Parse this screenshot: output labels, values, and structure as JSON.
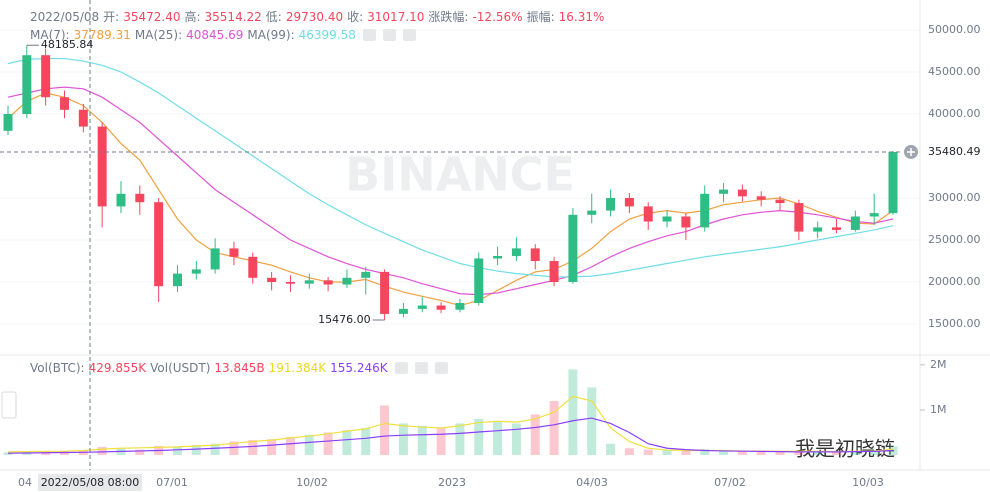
{
  "chart_data": {
    "type": "candlestick",
    "header": [
      {
        "label": "2022/05/08",
        "cls": ""
      },
      {
        "label": "开:",
        "cls": ""
      },
      {
        "label": "35472.40",
        "cls": "red"
      },
      {
        "label": "高:",
        "cls": ""
      },
      {
        "label": "35514.22",
        "cls": "red"
      },
      {
        "label": "低:",
        "cls": ""
      },
      {
        "label": "29730.40",
        "cls": "red"
      },
      {
        "label": "收:",
        "cls": ""
      },
      {
        "label": "31017.10",
        "cls": "red"
      },
      {
        "label": "涨跌幅:",
        "cls": ""
      },
      {
        "label": "-12.56%",
        "cls": "red"
      },
      {
        "label": "振幅:",
        "cls": ""
      },
      {
        "label": "16.31%",
        "cls": "red"
      }
    ],
    "candles": {
      "up_color": "#2ebd85",
      "down_color": "#f6465d",
      "open": [
        38000,
        40000,
        47000,
        42000,
        40500,
        38500,
        29000,
        30500,
        29500,
        19500,
        21000,
        21500,
        24000,
        23000,
        20500,
        20000,
        19800,
        20200,
        19700,
        20500,
        21200,
        16200,
        16800,
        17200,
        16700,
        17500,
        22800,
        23100,
        24000,
        22500,
        20000,
        28000,
        28500,
        30000,
        29000,
        27200,
        27800,
        26500,
        30500,
        31000,
        30200,
        29800,
        29400,
        26000,
        26500,
        26200,
        27800,
        28200
      ],
      "high": [
        41000,
        48185.84,
        47800,
        42800,
        41200,
        39000,
        32000,
        31500,
        30000,
        22000,
        22500,
        25200,
        24800,
        23500,
        21200,
        20800,
        21000,
        20600,
        21500,
        21800,
        21500,
        17500,
        18200,
        17600,
        18000,
        23500,
        24200,
        25300,
        24500,
        23000,
        28800,
        30500,
        31000,
        30600,
        29500,
        28500,
        28200,
        31500,
        31800,
        31600,
        30800,
        30200,
        29800,
        27200,
        27500,
        28500,
        30500,
        35600
      ],
      "low": [
        37500,
        39500,
        41000,
        39500,
        37800,
        26500,
        28200,
        28000,
        17600,
        18800,
        20300,
        21000,
        22000,
        19800,
        19000,
        18800,
        19200,
        18900,
        19300,
        18500,
        15476,
        15800,
        16400,
        16300,
        16400,
        17200,
        22000,
        22500,
        21500,
        19500,
        19800,
        27000,
        27800,
        28200,
        26200,
        26500,
        25000,
        26000,
        29500,
        29600,
        29000,
        28500,
        25000,
        25200,
        25800,
        26000,
        26800,
        28000
      ],
      "close": [
        40000,
        47000,
        42000,
        40500,
        38500,
        29000,
        30500,
        29500,
        19500,
        21000,
        21500,
        24000,
        23000,
        20500,
        20000,
        19800,
        20200,
        19700,
        20500,
        21200,
        16200,
        16800,
        17200,
        16700,
        17500,
        22800,
        23100,
        24000,
        22500,
        20000,
        28000,
        28500,
        30000,
        29000,
        27200,
        27800,
        26500,
        30500,
        31000,
        30200,
        29800,
        29400,
        26000,
        26500,
        26200,
        27800,
        28200,
        35480
      ]
    },
    "series": [
      {
        "name": "MA(7):",
        "value_label": "37789.31",
        "color": "#f0a040",
        "values": [
          39500,
          41500,
          42500,
          42000,
          41000,
          39000,
          36500,
          34500,
          31000,
          27500,
          25000,
          23500,
          23000,
          22500,
          22000,
          21200,
          20500,
          20000,
          20000,
          20300,
          19500,
          18800,
          18300,
          17800,
          17200,
          17800,
          19000,
          20200,
          21200,
          21500,
          22500,
          24000,
          26000,
          27500,
          28200,
          28500,
          28200,
          28500,
          29200,
          29500,
          29800,
          30000,
          29300,
          28400,
          27700,
          27000,
          26900,
          28500
        ]
      },
      {
        "name": "MA(25):",
        "value_label": "40845.69",
        "color": "#e052d8",
        "values": [
          42000,
          42500,
          43000,
          43200,
          43000,
          42000,
          40500,
          39000,
          37000,
          35000,
          33000,
          31000,
          29500,
          28000,
          26500,
          25000,
          24000,
          23000,
          22200,
          21500,
          21000,
          20500,
          19800,
          19200,
          18600,
          18500,
          18700,
          19200,
          19700,
          20200,
          20800,
          21800,
          23000,
          24000,
          24800,
          25500,
          26000,
          26800,
          27500,
          28000,
          28300,
          28500,
          28300,
          28000,
          27600,
          27200,
          27000,
          27500
        ]
      },
      {
        "name": "MA(99):",
        "value_label": "46399.58",
        "color": "#6fdde8",
        "values": [
          46000,
          46500,
          46600,
          46600,
          46300,
          45800,
          45000,
          43800,
          42500,
          41000,
          39500,
          38000,
          36500,
          35000,
          33500,
          32000,
          30500,
          29200,
          28000,
          26800,
          25800,
          24800,
          23800,
          23000,
          22200,
          21700,
          21300,
          21000,
          20800,
          20600,
          20600,
          20700,
          21000,
          21400,
          21800,
          22200,
          22600,
          23000,
          23300,
          23600,
          23900,
          24200,
          24600,
          25000,
          25400,
          25800,
          26200,
          26700
        ]
      }
    ],
    "ylim": [
      11667,
      53571
    ],
    "yticks": [
      {
        "value": 50000,
        "label": "50000.00"
      },
      {
        "value": 45000,
        "label": "45000.00"
      },
      {
        "value": 40000,
        "label": "40000.00"
      },
      {
        "value": 35000,
        "label": "35000.00"
      },
      {
        "value": 30000,
        "label": "30000.00"
      },
      {
        "value": 25000,
        "label": "25000.00"
      },
      {
        "value": 20000,
        "label": "20000.00"
      },
      {
        "value": 15000,
        "label": "15000.00"
      }
    ],
    "grid": true,
    "last_price": {
      "value": 35480.49,
      "label": "35480.49"
    },
    "annotations": [
      {
        "value": 48185.84,
        "label": "48185.84",
        "index": 1
      },
      {
        "value": 15476,
        "label": "15476.00",
        "index": 20
      }
    ],
    "volume": {
      "legend": [
        {
          "label": "Vol(BTC):",
          "color": "#707a8a"
        },
        {
          "label": "429.855K",
          "color": "#f6465d"
        },
        {
          "label": "Vol(USDT)",
          "color": "#707a8a"
        },
        {
          "label": "13.845B",
          "color": "#f6465d"
        },
        {
          "label": "191.384K",
          "color": "#e8d820"
        },
        {
          "label": "155.246K",
          "color": "#8a3ffc"
        }
      ],
      "ylim": [
        0,
        2220000
      ],
      "yticks": [
        {
          "value": 2000000,
          "label": "2M"
        },
        {
          "value": 1000000,
          "label": "1M"
        }
      ],
      "values": [
        60000,
        80000,
        70000,
        90000,
        100000,
        180000,
        150000,
        120000,
        200000,
        180000,
        220000,
        250000,
        300000,
        330000,
        350000,
        400000,
        450000,
        500000,
        550000,
        600000,
        1100000,
        700000,
        650000,
        600000,
        700000,
        800000,
        750000,
        700000,
        900000,
        1200000,
        1900000,
        1500000,
        250000,
        150000,
        120000,
        100000,
        90000,
        130000,
        110000,
        90000,
        80000,
        70000,
        100000,
        80000,
        70000,
        90000,
        110000,
        190000
      ],
      "ma_series": [
        {
          "color": "#f0e040",
          "values": [
            70000,
            75000,
            80000,
            85000,
            100000,
            130000,
            150000,
            160000,
            170000,
            180000,
            200000,
            220000,
            260000,
            300000,
            330000,
            380000,
            420000,
            470000,
            530000,
            580000,
            700000,
            650000,
            620000,
            600000,
            650000,
            720000,
            750000,
            730000,
            800000,
            950000,
            1300000,
            1200000,
            600000,
            300000,
            150000,
            110000,
            100000,
            100000,
            100000,
            90000,
            85000,
            80000,
            85000,
            80000,
            75000,
            80000,
            90000,
            130000
          ]
        },
        {
          "color": "#8a3ffc",
          "values": [
            40000,
            45000,
            50000,
            55000,
            60000,
            70000,
            80000,
            90000,
            100000,
            115000,
            130000,
            150000,
            170000,
            190000,
            220000,
            250000,
            280000,
            310000,
            340000,
            370000,
            420000,
            440000,
            450000,
            460000,
            480000,
            510000,
            540000,
            570000,
            610000,
            670000,
            760000,
            820000,
            700000,
            500000,
            250000,
            150000,
            120000,
            100000,
            90000,
            85000,
            80000,
            75000,
            70000,
            70000,
            70000,
            75000,
            80000,
            100000
          ]
        }
      ]
    },
    "x_labels": [
      "04",
      "07/01",
      "10/02",
      "2023",
      "04/03",
      "07/02",
      "10/03"
    ],
    "crosshair_label": "2022/05/08 08:00",
    "watermark": "BINANCE",
    "credit": "我是初晓链"
  }
}
